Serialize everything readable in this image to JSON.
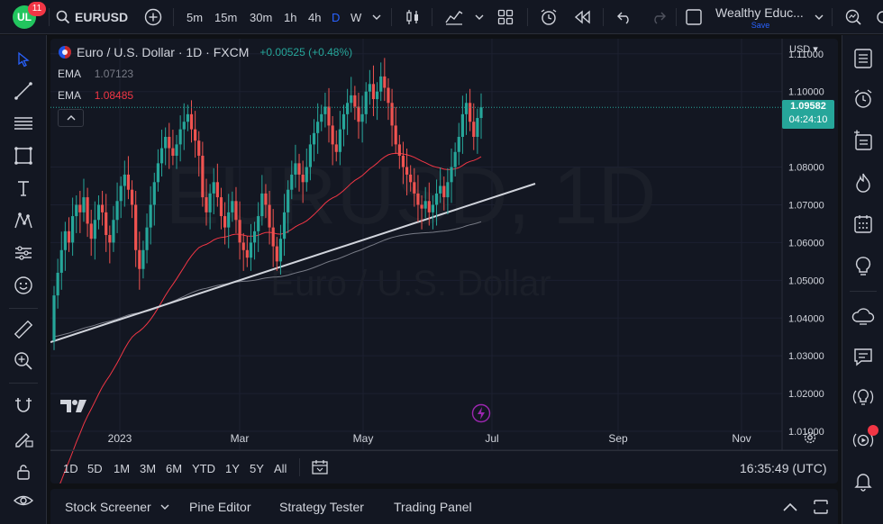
{
  "topbar": {
    "logo_badge": "11",
    "symbol": "EURUSD",
    "intervals": [
      "5m",
      "15m",
      "30m",
      "1h",
      "4h",
      "D",
      "W"
    ],
    "active_interval": "D",
    "layout_name": "Wealthy Educ...",
    "layout_save": "Save"
  },
  "legend": {
    "title": "Euro / U.S. Dollar · 1D · FXCM",
    "change": "+0.00525 (+0.48%)",
    "ema1_label": "EMA",
    "ema1_value": "1.07123",
    "ema2_label": "EMA",
    "ema2_value": "1.08485"
  },
  "watermark": {
    "symbol": "EURUSD, 1D",
    "name": "Euro / U.S. Dollar"
  },
  "price_axis": {
    "currency": "USD",
    "labels": [
      "1.11000",
      "1.10000",
      "1.08000",
      "1.07000",
      "1.06000",
      "1.05000",
      "1.04000",
      "1.03000",
      "1.02000",
      "1.01000"
    ],
    "last_price": "1.09582",
    "countdown": "04:24:10"
  },
  "time_axis": {
    "labels": [
      "2023",
      "Mar",
      "May",
      "Jul",
      "Sep",
      "Nov"
    ]
  },
  "range_bar": {
    "ranges": [
      "1D",
      "5D",
      "1M",
      "3M",
      "6M",
      "YTD",
      "1Y",
      "5Y",
      "All"
    ],
    "clock": "16:35:49 (UTC)"
  },
  "bottom_panel": {
    "tabs": [
      "Stock Screener",
      "Pine Editor",
      "Strategy Tester",
      "Trading Panel"
    ]
  },
  "chart_data": {
    "type": "candlestick",
    "symbol": "EURUSD",
    "timeframe": "1D",
    "ylim": [
      1.005,
      1.114
    ],
    "y_ticks": [
      1.01,
      1.02,
      1.03,
      1.04,
      1.05,
      1.06,
      1.07,
      1.08,
      1.1,
      1.11
    ],
    "last_close": 1.09582,
    "colors": {
      "up": "#26a69a",
      "down": "#ef5350",
      "ema_fast": "#f23645",
      "ema_slow": "#787b86",
      "trendline": "#d1d4dc",
      "background": "#131722"
    },
    "closes": [
      1.046,
      1.052,
      1.058,
      1.063,
      1.06,
      1.067,
      1.07,
      1.068,
      1.072,
      1.065,
      1.061,
      1.066,
      1.07,
      1.068,
      1.062,
      1.06,
      1.066,
      1.071,
      1.075,
      1.078,
      1.074,
      1.07,
      1.058,
      1.053,
      1.058,
      1.064,
      1.07,
      1.076,
      1.081,
      1.085,
      1.088,
      1.085,
      1.083,
      1.086,
      1.09,
      1.092,
      1.094,
      1.09,
      1.087,
      1.083,
      1.072,
      1.068,
      1.073,
      1.076,
      1.072,
      1.067,
      1.064,
      1.068,
      1.071,
      1.066,
      1.06,
      1.058,
      1.056,
      1.06,
      1.063,
      1.067,
      1.073,
      1.07,
      1.064,
      1.059,
      1.055,
      1.061,
      1.068,
      1.074,
      1.078,
      1.081,
      1.078,
      1.076,
      1.08,
      1.086,
      1.089,
      1.092,
      1.094,
      1.096,
      1.091,
      1.086,
      1.084,
      1.09,
      1.094,
      1.097,
      1.099,
      1.096,
      1.092,
      1.094,
      1.1,
      1.102,
      1.098,
      1.1,
      1.104,
      1.101,
      1.097,
      1.091,
      1.086,
      1.083,
      1.08,
      1.078,
      1.076,
      1.073,
      1.07,
      1.069,
      1.071,
      1.068,
      1.07,
      1.073,
      1.075,
      1.072,
      1.076,
      1.08,
      1.084,
      1.088,
      1.094,
      1.097,
      1.092,
      1.088,
      1.093,
      1.09582
    ]
  }
}
